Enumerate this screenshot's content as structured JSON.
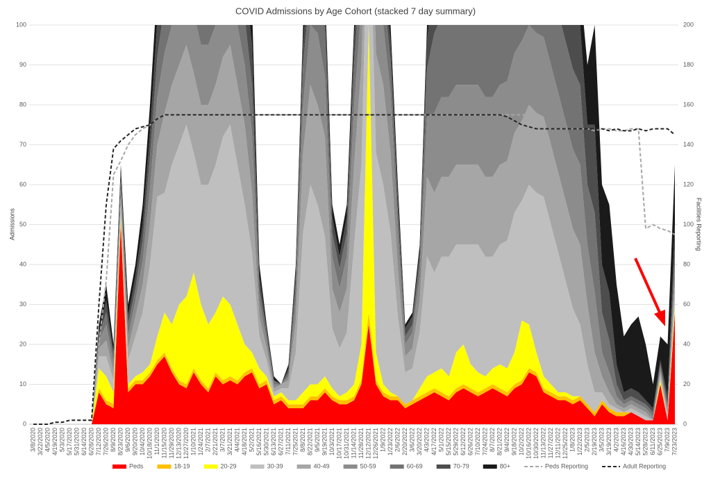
{
  "chart_data": {
    "type": "stacked_area",
    "title": "COVID Admissions by Age Cohort (stacked 7 day summary)",
    "y_label": "Admissions",
    "y2_label": "Facilities Reporting",
    "categories": [
      "3/8/2020",
      "3/22/2020",
      "4/5/2020",
      "4/19/2020",
      "5/3/2020",
      "5/17/2020",
      "5/31/2020",
      "6/14/2020",
      "6/28/2020",
      "7/12/2020",
      "7/26/2020",
      "8/9/2020",
      "8/23/2020",
      "9/6/2020",
      "9/20/2020",
      "10/4/2020",
      "10/18/2020",
      "11/1/2020",
      "11/15/2020",
      "11/29/2020",
      "12/13/2020",
      "12/27/2020",
      "1/10/2021",
      "1/24/2021",
      "2/7/2021",
      "2/21/2021",
      "3/7/2021",
      "3/21/2021",
      "4/4/2021",
      "4/18/2021",
      "5/2/2021",
      "5/16/2021",
      "5/30/2021",
      "6/13/2021",
      "6/27/2021",
      "7/11/2021",
      "7/25/2021",
      "8/8/2021",
      "8/22/2021",
      "9/5/2021",
      "9/19/2021",
      "10/3/2021",
      "10/17/2021",
      "10/31/2021",
      "11/14/2021",
      "11/28/2021",
      "12/12/2021",
      "12/26/2021",
      "1/9/2022",
      "1/23/2022",
      "2/6/2022",
      "2/20/2022",
      "3/6/2022",
      "3/20/2022",
      "4/3/2022",
      "4/17/2022",
      "5/1/2022",
      "5/15/2022",
      "5/29/2022",
      "6/12/2022",
      "6/26/2022",
      "7/10/2022",
      "7/24/2022",
      "8/7/2022",
      "8/21/2022",
      "9/4/2022",
      "9/18/2022",
      "10/2/2022",
      "10/16/2022",
      "10/30/2022",
      "11/13/2022",
      "11/27/2022",
      "12/11/2022",
      "12/25/2022",
      "1/8/2023",
      "1/22/2023",
      "2/5/2023",
      "2/19/2023",
      "3/5/2023",
      "3/19/2023",
      "4/2/2023",
      "4/16/2023",
      "4/30/2023",
      "5/14/2023",
      "5/28/2023",
      "6/11/2023",
      "6/25/2023",
      "7/9/2023",
      "7/23/2023"
    ],
    "ylim": [
      0,
      100
    ],
    "yticks": [
      0,
      10,
      20,
      30,
      40,
      50,
      60,
      70,
      80,
      90,
      100
    ],
    "y2lim": [
      0,
      200
    ],
    "y2ticks": [
      0,
      20,
      40,
      60,
      80,
      100,
      120,
      140,
      160,
      180,
      200
    ],
    "grid": true,
    "legend": "bottom",
    "series": [
      {
        "name": "Peds",
        "color": "#ff0000",
        "values": [
          0,
          0,
          0,
          0,
          0,
          0,
          0,
          0,
          0,
          8,
          5,
          4,
          50,
          8,
          10,
          10,
          12,
          15,
          17,
          13,
          10,
          9,
          13,
          10,
          8,
          12,
          10,
          11,
          10,
          12,
          13,
          9,
          10,
          5,
          6,
          4,
          4,
          4,
          6,
          6,
          8,
          6,
          5,
          5,
          6,
          10,
          25,
          10,
          7,
          6,
          6,
          4,
          5,
          6,
          7,
          8,
          7,
          6,
          8,
          9,
          8,
          7,
          8,
          9,
          8,
          7,
          9,
          10,
          13,
          12,
          8,
          7,
          6,
          6,
          5,
          6,
          4,
          2,
          5,
          3,
          2,
          2,
          3,
          2,
          1,
          1,
          10,
          1,
          28
        ]
      },
      {
        "name": "18-19",
        "color": "#ffc000",
        "values": [
          0,
          0,
          0,
          0,
          0,
          0,
          0,
          0,
          0,
          1,
          1,
          1,
          1,
          1,
          1,
          1,
          1,
          1,
          1,
          1,
          1,
          1,
          1,
          1,
          1,
          1,
          1,
          1,
          1,
          1,
          1,
          1,
          1,
          1,
          1,
          1,
          1,
          1,
          1,
          1,
          1,
          1,
          1,
          1,
          1,
          1,
          3,
          1,
          1,
          1,
          1,
          1,
          1,
          1,
          1,
          1,
          1,
          1,
          1,
          1,
          1,
          1,
          1,
          1,
          1,
          1,
          1,
          1,
          1,
          1,
          1,
          1,
          1,
          1,
          1,
          1,
          1,
          1,
          1,
          1,
          1,
          1,
          0,
          0,
          0,
          0,
          0,
          0,
          0
        ]
      },
      {
        "name": "20-29",
        "color": "#ffff00",
        "values": [
          0,
          0,
          0,
          0,
          0,
          0,
          0,
          0,
          0,
          5,
          6,
          3,
          1,
          1,
          1,
          2,
          2,
          6,
          10,
          11,
          19,
          22,
          24,
          19,
          16,
          15,
          21,
          18,
          14,
          7,
          4,
          4,
          1,
          1,
          1,
          1,
          1,
          3,
          3,
          3,
          3,
          2,
          1,
          2,
          3,
          9,
          72,
          7,
          2,
          1,
          0,
          0,
          0,
          2,
          4,
          4,
          6,
          5,
          9,
          10,
          6,
          5,
          3,
          4,
          6,
          6,
          8,
          15,
          11,
          5,
          3,
          2,
          1,
          1,
          1,
          0,
          0,
          0,
          0,
          0,
          0,
          0,
          0,
          0,
          0,
          0,
          1,
          0,
          2
        ]
      },
      {
        "name": "30-39",
        "color": "#bfbfbf",
        "values": [
          0,
          0,
          0,
          0,
          0,
          0,
          0,
          0,
          0,
          3,
          5,
          3,
          3,
          6,
          10,
          15,
          25,
          35,
          30,
          40,
          40,
          43,
          30,
          30,
          35,
          37,
          40,
          45,
          40,
          35,
          25,
          8,
          4,
          1,
          1,
          3,
          12,
          40,
          50,
          45,
          35,
          15,
          12,
          15,
          35,
          45,
          40,
          50,
          50,
          40,
          20,
          8,
          8,
          14,
          30,
          25,
          28,
          30,
          27,
          25,
          30,
          32,
          30,
          28,
          30,
          32,
          35,
          30,
          35,
          40,
          45,
          40,
          35,
          28,
          22,
          18,
          10,
          5,
          2,
          1,
          1,
          0,
          1,
          1,
          1,
          0,
          1,
          1,
          3
        ]
      },
      {
        "name": "40-49",
        "color": "#a6a6a6",
        "values": [
          0,
          0,
          0,
          0,
          0,
          0,
          0,
          0,
          0,
          2,
          4,
          2,
          2,
          3,
          5,
          7,
          10,
          13,
          20,
          20,
          20,
          20,
          20,
          20,
          20,
          20,
          20,
          20,
          20,
          20,
          15,
          5,
          3,
          1,
          1,
          2,
          8,
          20,
          25,
          25,
          25,
          10,
          9,
          11,
          20,
          25,
          20,
          25,
          25,
          20,
          12,
          4,
          5,
          8,
          20,
          20,
          20,
          20,
          20,
          20,
          20,
          20,
          20,
          20,
          20,
          20,
          20,
          20,
          20,
          20,
          20,
          20,
          20,
          20,
          20,
          20,
          15,
          10,
          4,
          3,
          1,
          1,
          1,
          1,
          1,
          0,
          1,
          1,
          3
        ]
      },
      {
        "name": "50-59",
        "color": "#8c8c8c",
        "values": [
          0,
          0,
          0,
          0,
          0,
          0,
          0,
          0,
          0,
          2,
          4,
          2,
          2,
          3,
          4,
          6,
          9,
          12,
          15,
          15,
          15,
          15,
          15,
          15,
          15,
          15,
          15,
          15,
          15,
          15,
          15,
          4,
          2,
          1,
          0,
          1,
          5,
          12,
          15,
          18,
          15,
          8,
          6,
          8,
          15,
          15,
          15,
          15,
          15,
          15,
          9,
          3,
          4,
          6,
          15,
          20,
          20,
          20,
          20,
          20,
          20,
          20,
          20,
          20,
          20,
          20,
          20,
          20,
          20,
          20,
          20,
          20,
          20,
          20,
          20,
          20,
          15,
          15,
          6,
          5,
          2,
          1,
          1,
          1,
          1,
          1,
          1,
          1,
          4
        ]
      },
      {
        "name": "60-69",
        "color": "#737373",
        "values": [
          0,
          0,
          0,
          0,
          0,
          0,
          0,
          0,
          0,
          1,
          3,
          2,
          2,
          3,
          3,
          5,
          8,
          10,
          12,
          12,
          12,
          12,
          12,
          12,
          12,
          12,
          12,
          12,
          12,
          12,
          12,
          3,
          2,
          1,
          0,
          1,
          4,
          10,
          10,
          12,
          12,
          6,
          5,
          6,
          10,
          12,
          10,
          10,
          10,
          8,
          5,
          2,
          2,
          4,
          12,
          20,
          20,
          20,
          20,
          20,
          20,
          20,
          20,
          20,
          20,
          20,
          20,
          20,
          20,
          20,
          20,
          20,
          20,
          20,
          20,
          20,
          15,
          20,
          10,
          8,
          3,
          1,
          1,
          1,
          1,
          1,
          1,
          1,
          4
        ]
      },
      {
        "name": "70-79",
        "color": "#4d4d4d",
        "values": [
          0,
          0,
          0,
          0,
          0,
          0,
          0,
          0,
          0,
          1,
          3,
          1,
          2,
          2,
          3,
          4,
          6,
          9,
          10,
          10,
          10,
          10,
          10,
          10,
          10,
          10,
          10,
          10,
          10,
          10,
          10,
          3,
          1,
          0,
          0,
          1,
          3,
          6,
          6,
          6,
          7,
          4,
          3,
          4,
          6,
          8,
          8,
          7,
          6,
          5,
          4,
          2,
          2,
          2,
          7,
          15,
          15,
          15,
          15,
          15,
          15,
          15,
          15,
          15,
          15,
          15,
          15,
          15,
          15,
          15,
          15,
          15,
          15,
          15,
          15,
          15,
          15,
          22,
          12,
          12,
          5,
          2,
          2,
          2,
          1,
          1,
          1,
          2,
          6
        ]
      },
      {
        "name": "80+",
        "color": "#1a1a1a",
        "values": [
          0,
          0,
          0,
          0,
          0,
          0,
          0,
          0,
          0,
          2,
          4,
          2,
          2,
          3,
          3,
          5,
          7,
          9,
          10,
          10,
          10,
          10,
          10,
          10,
          10,
          10,
          10,
          10,
          10,
          10,
          10,
          3,
          1,
          1,
          0,
          1,
          2,
          4,
          4,
          4,
          4,
          3,
          3,
          3,
          4,
          5,
          7,
          5,
          4,
          4,
          3,
          1,
          1,
          2,
          4,
          10,
          10,
          10,
          10,
          10,
          10,
          10,
          10,
          10,
          10,
          10,
          10,
          10,
          10,
          10,
          10,
          10,
          10,
          10,
          10,
          10,
          15,
          25,
          20,
          22,
          20,
          14,
          16,
          19,
          14,
          6,
          6,
          13,
          15
        ]
      },
      {
        "name": "Peds Reporting",
        "color": "#a6a6a6",
        "axis": "y2",
        "style": "dashed",
        "values": [
          0,
          0,
          0,
          1,
          1,
          2,
          2,
          2,
          2,
          40,
          72,
          125,
          132,
          140,
          145,
          148,
          150,
          153,
          155,
          155,
          155,
          155,
          155,
          155,
          155,
          155,
          155,
          155,
          155,
          155,
          155,
          155,
          155,
          155,
          155,
          155,
          155,
          155,
          155,
          155,
          155,
          155,
          155,
          155,
          155,
          155,
          155,
          155,
          155,
          155,
          155,
          155,
          155,
          155,
          155,
          155,
          155,
          155,
          155,
          155,
          155,
          155,
          155,
          155,
          155,
          155,
          155,
          155,
          155,
          148,
          148,
          148,
          148,
          148,
          148,
          148,
          148,
          147,
          148,
          148,
          147,
          147,
          148,
          148,
          98,
          100,
          98,
          97,
          95
        ]
      },
      {
        "name": "Adult Reporting",
        "color": "#262626",
        "axis": "y2",
        "style": "dashed",
        "values": [
          0,
          0,
          0,
          1,
          1,
          2,
          2,
          2,
          2,
          60,
          110,
          138,
          142,
          145,
          148,
          149,
          150,
          153,
          155,
          155,
          155,
          155,
          155,
          155,
          155,
          155,
          155,
          155,
          155,
          155,
          155,
          155,
          155,
          155,
          155,
          155,
          155,
          155,
          155,
          155,
          155,
          155,
          155,
          155,
          155,
          155,
          155,
          155,
          155,
          155,
          155,
          155,
          155,
          155,
          155,
          155,
          155,
          155,
          155,
          155,
          155,
          155,
          155,
          155,
          155,
          154,
          152,
          150,
          149,
          148,
          148,
          148,
          148,
          148,
          148,
          148,
          148,
          148,
          148,
          147,
          148,
          147,
          147,
          148,
          147,
          148,
          148,
          148,
          145
        ]
      }
    ]
  }
}
